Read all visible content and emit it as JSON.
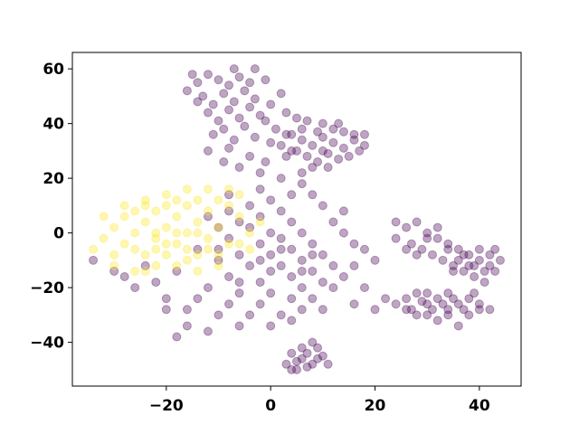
{
  "chart_data": {
    "type": "scatter",
    "title": "",
    "xlabel": "",
    "ylabel": "",
    "xlim": [
      -38,
      48
    ],
    "ylim": [
      -56,
      66
    ],
    "grid": false,
    "legend": "none",
    "x_ticks": [
      -20,
      0,
      20,
      40
    ],
    "y_ticks": [
      -40,
      -20,
      0,
      20,
      40,
      60
    ],
    "x_tick_labels": [
      "−20",
      "0",
      "20",
      "40"
    ],
    "y_tick_labels": [
      "−40",
      "−20",
      "0",
      "20",
      "40",
      "60"
    ],
    "marker": "circle",
    "alpha": 0.35,
    "series": [
      {
        "color": "#440154",
        "points": [
          [
            -16,
            52
          ],
          [
            -14,
            55
          ],
          [
            -12,
            58
          ],
          [
            -10,
            56
          ],
          [
            -8,
            54
          ],
          [
            -6,
            57
          ],
          [
            -4,
            55
          ],
          [
            -13,
            50
          ],
          [
            -9,
            51
          ],
          [
            -5,
            52
          ],
          [
            -11,
            47
          ],
          [
            -7,
            48
          ],
          [
            -3,
            49
          ],
          [
            -12,
            44
          ],
          [
            -8,
            45
          ],
          [
            -4,
            46
          ],
          [
            -2,
            43
          ],
          [
            -6,
            42
          ],
          [
            -10,
            41
          ],
          [
            -14,
            48
          ],
          [
            -9,
            38
          ],
          [
            -5,
            39
          ],
          [
            -1,
            41
          ],
          [
            1,
            38
          ],
          [
            3,
            44
          ],
          [
            -3,
            35
          ],
          [
            0,
            33
          ],
          [
            -7,
            34
          ],
          [
            -11,
            36
          ],
          [
            2,
            51
          ],
          [
            -1,
            56
          ],
          [
            -15,
            58
          ],
          [
            -7,
            60
          ],
          [
            -3,
            60
          ],
          [
            0,
            47
          ],
          [
            4,
            30
          ],
          [
            -4,
            28
          ],
          [
            -1,
            26
          ],
          [
            -8,
            31
          ],
          [
            -12,
            30
          ],
          [
            -6,
            24
          ],
          [
            -2,
            22
          ],
          [
            -9,
            26
          ],
          [
            3,
            36
          ],
          [
            5,
            42
          ],
          [
            4,
            36
          ],
          [
            6,
            34
          ],
          [
            8,
            32
          ],
          [
            10,
            35
          ],
          [
            12,
            33
          ],
          [
            14,
            31
          ],
          [
            16,
            34
          ],
          [
            18,
            32
          ],
          [
            5,
            30
          ],
          [
            7,
            28
          ],
          [
            9,
            26
          ],
          [
            11,
            29
          ],
          [
            13,
            27
          ],
          [
            6,
            38
          ],
          [
            10,
            40
          ],
          [
            12,
            38
          ],
          [
            14,
            37
          ],
          [
            16,
            36
          ],
          [
            3,
            28
          ],
          [
            8,
            24
          ],
          [
            11,
            24
          ],
          [
            15,
            28
          ],
          [
            17,
            30
          ],
          [
            2,
            32
          ],
          [
            9,
            37
          ],
          [
            6,
            22
          ],
          [
            13,
            40
          ],
          [
            18,
            36
          ],
          [
            7,
            41
          ],
          [
            10,
            30
          ],
          [
            -12,
            6
          ],
          [
            -8,
            8
          ],
          [
            -4,
            10
          ],
          [
            0,
            12
          ],
          [
            -6,
            4
          ],
          [
            -2,
            6
          ],
          [
            2,
            8
          ],
          [
            -10,
            2
          ],
          [
            -4,
            2
          ],
          [
            0,
            0
          ],
          [
            4,
            4
          ],
          [
            -8,
            -2
          ],
          [
            -2,
            -4
          ],
          [
            2,
            -2
          ],
          [
            6,
            0
          ],
          [
            -6,
            -8
          ],
          [
            0,
            -8
          ],
          [
            4,
            -6
          ],
          [
            8,
            -4
          ],
          [
            -10,
            -10
          ],
          [
            -4,
            -12
          ],
          [
            2,
            -12
          ],
          [
            6,
            -10
          ],
          [
            10,
            -8
          ],
          [
            -8,
            -16
          ],
          [
            -2,
            -18
          ],
          [
            4,
            -16
          ],
          [
            8,
            -14
          ],
          [
            12,
            -12
          ],
          [
            -12,
            -20
          ],
          [
            -6,
            -22
          ],
          [
            0,
            -22
          ],
          [
            6,
            -20
          ],
          [
            10,
            -18
          ],
          [
            14,
            -16
          ],
          [
            -14,
            -24
          ],
          [
            -8,
            -26
          ],
          [
            -2,
            -26
          ],
          [
            4,
            -24
          ],
          [
            8,
            -24
          ],
          [
            -4,
            -30
          ],
          [
            2,
            -30
          ],
          [
            6,
            -28
          ],
          [
            -10,
            -30
          ],
          [
            0,
            -34
          ],
          [
            -6,
            -34
          ],
          [
            4,
            -32
          ],
          [
            10,
            -28
          ],
          [
            -16,
            -28
          ],
          [
            -20,
            -24
          ],
          [
            12,
            4
          ],
          [
            14,
            0
          ],
          [
            16,
            -4
          ],
          [
            12,
            -20
          ],
          [
            16,
            -12
          ],
          [
            18,
            -6
          ],
          [
            10,
            10
          ],
          [
            14,
            8
          ],
          [
            8,
            14
          ],
          [
            4,
            14
          ],
          [
            -2,
            16
          ],
          [
            -8,
            14
          ],
          [
            6,
            18
          ],
          [
            2,
            20
          ],
          [
            -14,
            -6
          ],
          [
            -18,
            -14
          ],
          [
            -22,
            -18
          ],
          [
            -24,
            -12
          ],
          [
            -26,
            -20
          ],
          [
            -28,
            -16
          ],
          [
            -30,
            -14
          ],
          [
            -34,
            -10
          ],
          [
            -20,
            -28
          ],
          [
            -16,
            -34
          ],
          [
            -12,
            -36
          ],
          [
            -18,
            -38
          ],
          [
            20,
            -10
          ],
          [
            18,
            -20
          ],
          [
            16,
            -26
          ],
          [
            20,
            -28
          ],
          [
            22,
            -24
          ],
          [
            24,
            -26
          ],
          [
            26,
            -28
          ],
          [
            -6,
            -18
          ],
          [
            0,
            -14
          ],
          [
            -10,
            -6
          ],
          [
            6,
            -14
          ],
          [
            2,
            -6
          ],
          [
            -2,
            -10
          ],
          [
            8,
            -8
          ],
          [
            24,
            -2
          ],
          [
            26,
            2
          ],
          [
            28,
            4
          ],
          [
            30,
            0
          ],
          [
            32,
            -2
          ],
          [
            34,
            -4
          ],
          [
            36,
            -6
          ],
          [
            38,
            -8
          ],
          [
            40,
            -10
          ],
          [
            42,
            -12
          ],
          [
            27,
            -4
          ],
          [
            29,
            -6
          ],
          [
            31,
            -8
          ],
          [
            33,
            -10
          ],
          [
            35,
            -12
          ],
          [
            37,
            -14
          ],
          [
            39,
            -16
          ],
          [
            41,
            -18
          ],
          [
            43,
            -14
          ],
          [
            44,
            -10
          ],
          [
            38,
            -12
          ],
          [
            36,
            -10
          ],
          [
            40,
            -6
          ],
          [
            42,
            -8
          ],
          [
            34,
            -6
          ],
          [
            30,
            -2
          ],
          [
            28,
            -8
          ],
          [
            32,
            2
          ],
          [
            26,
            -6
          ],
          [
            24,
            4
          ],
          [
            35,
            -14
          ],
          [
            39,
            -12
          ],
          [
            41,
            -14
          ],
          [
            37,
            -8
          ],
          [
            43,
            -6
          ],
          [
            26,
            -24
          ],
          [
            28,
            -22
          ],
          [
            30,
            -26
          ],
          [
            32,
            -24
          ],
          [
            34,
            -28
          ],
          [
            36,
            -26
          ],
          [
            38,
            -30
          ],
          [
            40,
            -28
          ],
          [
            28,
            -30
          ],
          [
            30,
            -30
          ],
          [
            32,
            -32
          ],
          [
            34,
            -30
          ],
          [
            36,
            -34
          ],
          [
            38,
            -24
          ],
          [
            40,
            -26
          ],
          [
            42,
            -28
          ],
          [
            27,
            -28
          ],
          [
            29,
            -25
          ],
          [
            31,
            -28
          ],
          [
            33,
            -26
          ],
          [
            35,
            -24
          ],
          [
            37,
            -28
          ],
          [
            39,
            -22
          ],
          [
            30,
            -22
          ],
          [
            34,
            -22
          ],
          [
            4,
            -44
          ],
          [
            6,
            -46
          ],
          [
            8,
            -48
          ],
          [
            10,
            -45
          ],
          [
            5,
            -50
          ],
          [
            7,
            -49
          ],
          [
            9,
            -42
          ],
          [
            6,
            -42
          ],
          [
            3,
            -48
          ],
          [
            11,
            -48
          ],
          [
            8,
            -40
          ],
          [
            5,
            -47
          ],
          [
            7,
            -44
          ],
          [
            9,
            -46
          ],
          [
            4,
            -50
          ]
        ]
      },
      {
        "color": "#fde725",
        "points": [
          [
            -30,
            2
          ],
          [
            -28,
            6
          ],
          [
            -26,
            0
          ],
          [
            -24,
            4
          ],
          [
            -22,
            -2
          ],
          [
            -20,
            2
          ],
          [
            -18,
            6
          ],
          [
            -16,
            0
          ],
          [
            -14,
            4
          ],
          [
            -12,
            -2
          ],
          [
            -10,
            2
          ],
          [
            -8,
            -4
          ],
          [
            -28,
            -4
          ],
          [
            -26,
            -6
          ],
          [
            -24,
            -8
          ],
          [
            -22,
            -6
          ],
          [
            -20,
            -8
          ],
          [
            -18,
            -4
          ],
          [
            -16,
            -6
          ],
          [
            -14,
            -8
          ],
          [
            -12,
            -6
          ],
          [
            -10,
            -8
          ],
          [
            -26,
            8
          ],
          [
            -24,
            10
          ],
          [
            -22,
            8
          ],
          [
            -20,
            10
          ],
          [
            -18,
            12
          ],
          [
            -16,
            10
          ],
          [
            -14,
            12
          ],
          [
            -12,
            8
          ],
          [
            -10,
            12
          ],
          [
            -8,
            10
          ],
          [
            -6,
            6
          ],
          [
            -6,
            -4
          ],
          [
            -4,
            0
          ],
          [
            -32,
            -2
          ],
          [
            -30,
            -8
          ],
          [
            -28,
            10
          ],
          [
            -24,
            12
          ],
          [
            -20,
            14
          ],
          [
            -16,
            16
          ],
          [
            -12,
            16
          ],
          [
            -8,
            16
          ],
          [
            -22,
            0
          ],
          [
            -18,
            0
          ],
          [
            -14,
            0
          ],
          [
            -20,
            -4
          ],
          [
            -16,
            -10
          ],
          [
            -22,
            -12
          ],
          [
            -18,
            -12
          ],
          [
            -24,
            -14
          ],
          [
            -14,
            -14
          ],
          [
            -10,
            -12
          ],
          [
            -4,
            -6
          ],
          [
            -2,
            4
          ],
          [
            -34,
            -6
          ],
          [
            -32,
            6
          ],
          [
            -30,
            -12
          ],
          [
            -26,
            -14
          ],
          [
            -6,
            14
          ]
        ]
      }
    ]
  }
}
